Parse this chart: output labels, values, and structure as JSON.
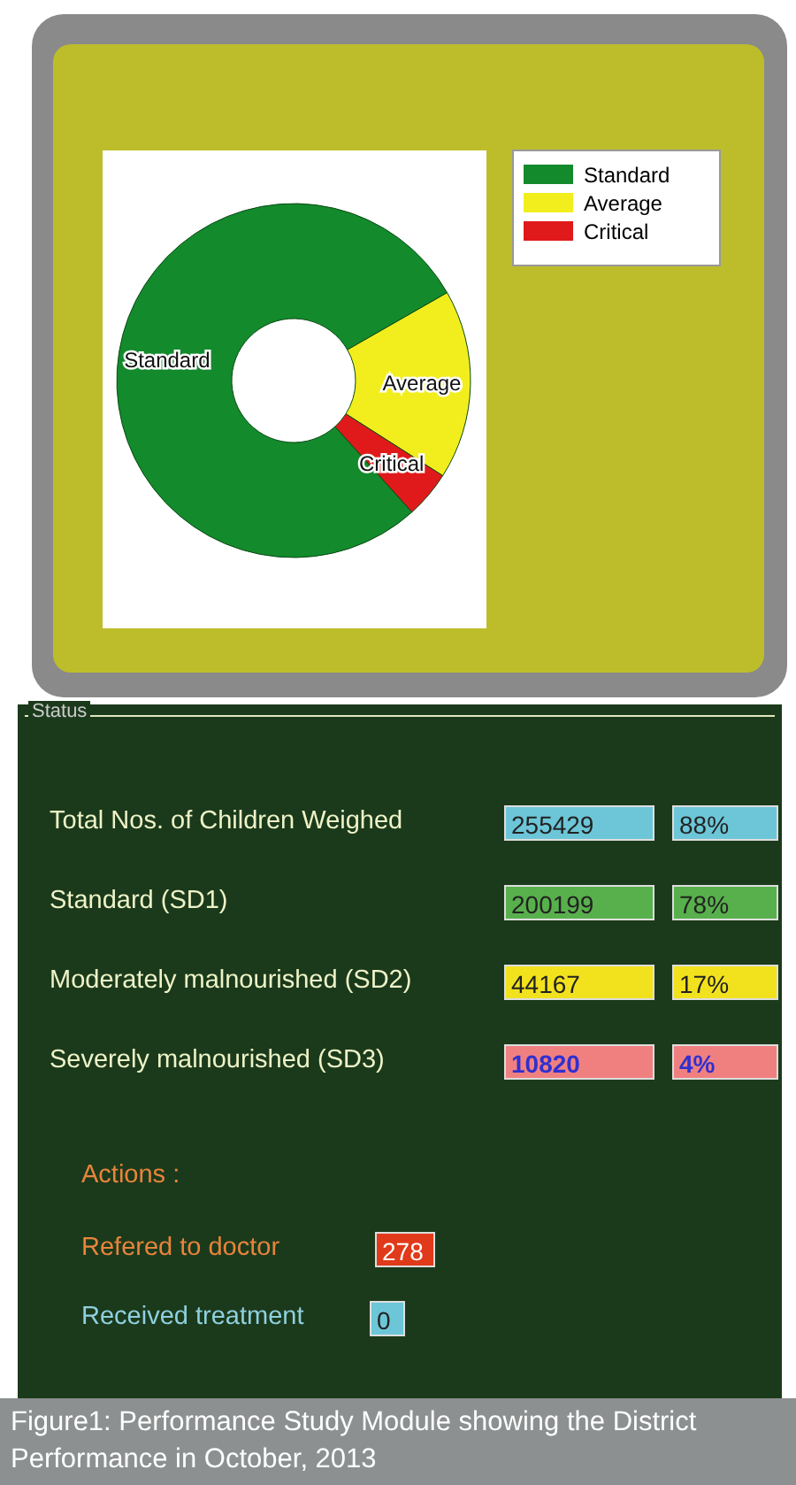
{
  "chart_data": [
    {
      "type": "donut",
      "categories": [
        "Standard",
        "Average",
        "Critical"
      ],
      "values": [
        78.4,
        17.3,
        4.3
      ],
      "colors": [
        "#138a2c",
        "#f2ee1e",
        "#e01a1a"
      ],
      "legend": "top right"
    },
    {
      "type": "other",
      "title": "Status",
      "annotations": [
        "Total Nos. of Children Weighed",
        "255429",
        "88%",
        "Standard (SD1)",
        "200199",
        "78%",
        "Moderately malnourished (SD2)",
        "44167",
        "17%",
        "Severely malnourished (SD3)",
        "10820",
        "4%",
        "Actions :",
        "Refered to doctor",
        "278",
        "Received treatment",
        "0",
        "Figure1: Performance Study Module showing the District Performance in October, 2013"
      ]
    }
  ]
}
